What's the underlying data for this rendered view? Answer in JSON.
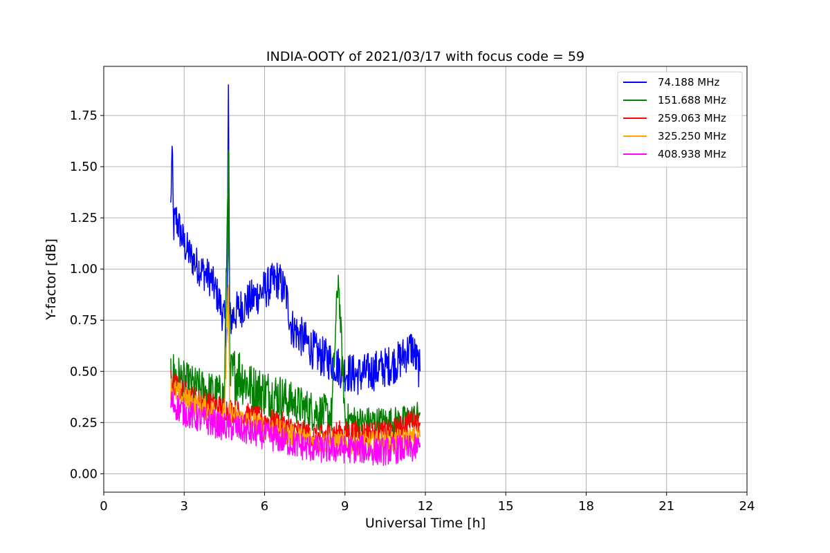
{
  "chart_data": {
    "type": "line",
    "title": "INDIA-OOTY of 2021/03/17 with focus code = 59",
    "xlabel": "Universal Time [h]",
    "ylabel": "Y-factor [dB]",
    "xlim": [
      0,
      24
    ],
    "ylim": [
      -0.09,
      1.99
    ],
    "xticks": [
      0,
      3,
      6,
      9,
      12,
      15,
      18,
      21,
      24
    ],
    "xtick_labels": [
      "0",
      "3",
      "6",
      "9",
      "12",
      "15",
      "18",
      "21",
      "24"
    ],
    "yticks": [
      0.0,
      0.25,
      0.5,
      0.75,
      1.0,
      1.25,
      1.5,
      1.75
    ],
    "ytick_labels": [
      "0.00",
      "0.25",
      "0.50",
      "0.75",
      "1.00",
      "1.25",
      "1.50",
      "1.75"
    ],
    "grid": true,
    "legend_position": "top-right",
    "series": [
      {
        "name": " 74.188 MHz",
        "color": "#0000ff",
        "x": [
          2.5,
          2.55,
          2.6,
          2.7,
          3.0,
          3.3,
          3.6,
          4.0,
          4.3,
          4.6,
          4.65,
          4.7,
          5.0,
          5.5,
          6.0,
          6.5,
          6.8,
          7.0,
          7.5,
          8.0,
          8.5,
          9.0,
          9.5,
          10.0,
          10.5,
          11.0,
          11.5,
          11.8
        ],
        "y": [
          1.3,
          1.6,
          1.2,
          1.25,
          1.12,
          1.05,
          1.0,
          0.95,
          0.85,
          0.7,
          1.9,
          0.75,
          0.8,
          0.85,
          0.9,
          0.95,
          0.88,
          0.72,
          0.65,
          0.58,
          0.55,
          0.5,
          0.48,
          0.5,
          0.52,
          0.55,
          0.62,
          0.5
        ],
        "amp": [
          0.08,
          0.0,
          0.1,
          0.1,
          0.09,
          0.09,
          0.09,
          0.09,
          0.09,
          0.1,
          0.0,
          0.1,
          0.1,
          0.1,
          0.1,
          0.1,
          0.1,
          0.1,
          0.1,
          0.1,
          0.1,
          0.1,
          0.1,
          0.1,
          0.1,
          0.1,
          0.1,
          0.1
        ]
      },
      {
        "name": "151.688 MHz",
        "color": "#008000",
        "x": [
          2.5,
          3.0,
          3.5,
          4.0,
          4.5,
          4.65,
          4.7,
          5.0,
          5.5,
          6.0,
          6.5,
          7.0,
          7.5,
          8.0,
          8.5,
          8.75,
          9.0,
          9.5,
          10.0,
          10.5,
          11.0,
          11.5,
          11.8
        ],
        "y": [
          0.5,
          0.45,
          0.42,
          0.4,
          0.38,
          1.58,
          0.45,
          0.5,
          0.42,
          0.4,
          0.38,
          0.35,
          0.32,
          0.3,
          0.28,
          0.97,
          0.27,
          0.25,
          0.25,
          0.25,
          0.25,
          0.28,
          0.3
        ],
        "amp": [
          0.12,
          0.1,
          0.1,
          0.1,
          0.1,
          0.0,
          0.15,
          0.15,
          0.12,
          0.12,
          0.12,
          0.1,
          0.1,
          0.1,
          0.1,
          0.0,
          0.08,
          0.08,
          0.08,
          0.08,
          0.08,
          0.06,
          0.06
        ]
      },
      {
        "name": "259.063 MHz",
        "color": "#ff0000",
        "x": [
          2.5,
          3.0,
          3.5,
          4.0,
          4.5,
          5.0,
          5.5,
          6.0,
          6.5,
          7.0,
          7.5,
          8.0,
          8.5,
          9.0,
          9.5,
          10.0,
          10.5,
          11.0,
          11.5,
          11.8
        ],
        "y": [
          0.45,
          0.4,
          0.36,
          0.34,
          0.32,
          0.3,
          0.28,
          0.26,
          0.25,
          0.22,
          0.2,
          0.18,
          0.2,
          0.2,
          0.2,
          0.2,
          0.2,
          0.22,
          0.27,
          0.25
        ],
        "amp": [
          0.06,
          0.06,
          0.06,
          0.06,
          0.06,
          0.06,
          0.06,
          0.06,
          0.06,
          0.06,
          0.06,
          0.06,
          0.06,
          0.06,
          0.06,
          0.06,
          0.06,
          0.06,
          0.05,
          0.05
        ]
      },
      {
        "name": "325.250 MHz",
        "color": "#ffa500",
        "x": [
          2.5,
          3.0,
          3.5,
          4.0,
          4.5,
          4.65,
          4.7,
          5.0,
          5.5,
          6.0,
          6.5,
          7.0,
          7.5,
          8.0,
          8.5,
          9.0,
          9.5,
          10.0,
          10.5,
          11.0,
          11.5,
          11.8
        ],
        "y": [
          0.42,
          0.37,
          0.33,
          0.31,
          0.29,
          0.92,
          0.3,
          0.27,
          0.25,
          0.23,
          0.21,
          0.19,
          0.17,
          0.16,
          0.15,
          0.15,
          0.15,
          0.15,
          0.15,
          0.16,
          0.17,
          0.18
        ],
        "amp": [
          0.06,
          0.06,
          0.06,
          0.06,
          0.06,
          0.0,
          0.06,
          0.06,
          0.06,
          0.06,
          0.06,
          0.06,
          0.06,
          0.06,
          0.06,
          0.06,
          0.06,
          0.06,
          0.06,
          0.06,
          0.06,
          0.06
        ]
      },
      {
        "name": "408.938 MHz",
        "color": "#ff00ff",
        "x": [
          2.5,
          3.0,
          3.5,
          4.0,
          4.5,
          5.0,
          5.5,
          6.0,
          6.5,
          7.0,
          7.5,
          8.0,
          8.5,
          9.0,
          9.5,
          10.0,
          10.5,
          11.0,
          11.5,
          11.8
        ],
        "y": [
          0.35,
          0.3,
          0.27,
          0.25,
          0.23,
          0.22,
          0.2,
          0.19,
          0.17,
          0.15,
          0.13,
          0.12,
          0.12,
          0.12,
          0.12,
          0.11,
          0.11,
          0.12,
          0.12,
          0.13
        ],
        "amp": [
          0.07,
          0.07,
          0.07,
          0.07,
          0.07,
          0.07,
          0.07,
          0.07,
          0.07,
          0.07,
          0.07,
          0.07,
          0.07,
          0.07,
          0.07,
          0.07,
          0.07,
          0.07,
          0.07,
          0.07
        ]
      }
    ]
  }
}
